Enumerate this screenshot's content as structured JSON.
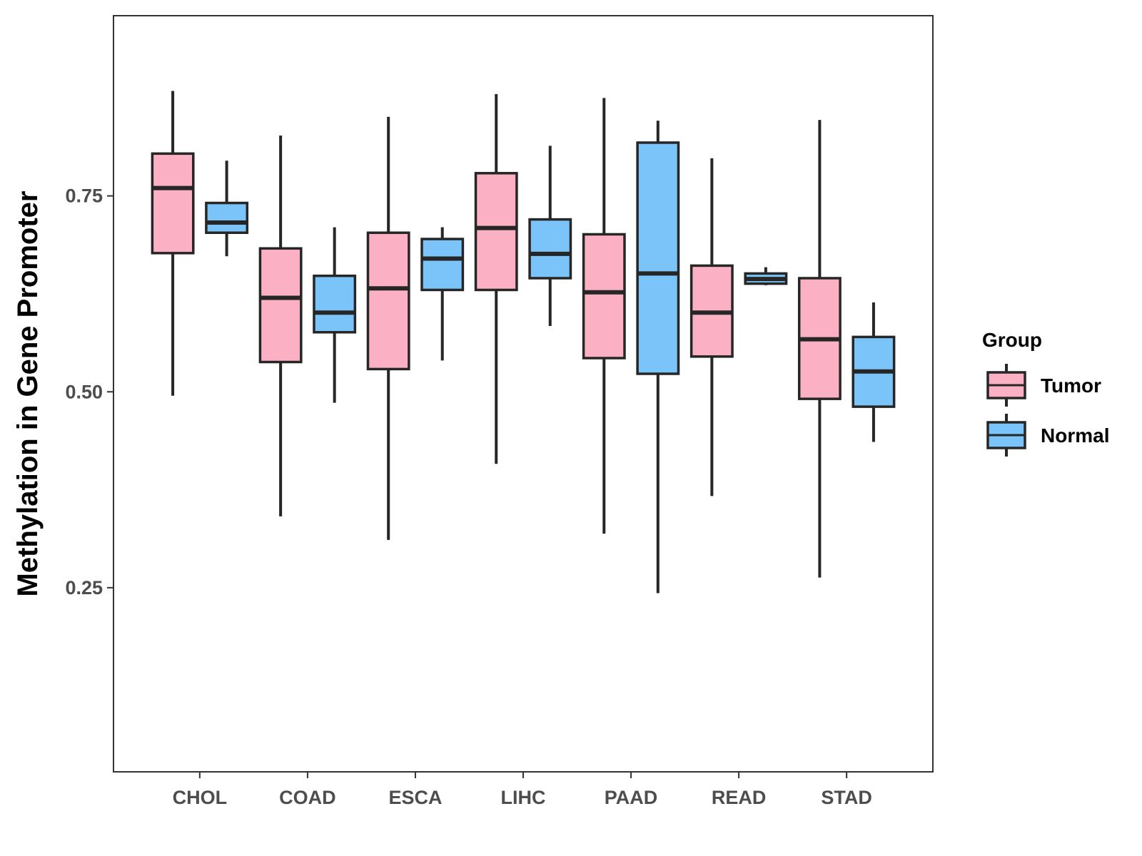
{
  "chart_data": {
    "type": "boxplot",
    "title": "",
    "xlabel": "",
    "ylabel": "Methylation in Gene Promoter",
    "ylim": [
      0.015,
      0.98
    ],
    "yticks": [
      0.25,
      0.5,
      0.75
    ],
    "ytick_labels": [
      "0.25",
      "0.50",
      "0.75"
    ],
    "categories": [
      "CHOL",
      "COAD",
      "ESCA",
      "LIHC",
      "PAAD",
      "READ",
      "STAD"
    ],
    "legend": {
      "title": "Group",
      "position": "right"
    },
    "series": [
      {
        "name": "Tumor",
        "color": "#FBB1C3",
        "boxes": [
          {
            "min": 0.495,
            "q1": 0.677,
            "median": 0.76,
            "q3": 0.804,
            "max": 0.884
          },
          {
            "min": 0.341,
            "q1": 0.538,
            "median": 0.62,
            "q3": 0.683,
            "max": 0.827
          },
          {
            "min": 0.311,
            "q1": 0.529,
            "median": 0.632,
            "q3": 0.703,
            "max": 0.851
          },
          {
            "min": 0.408,
            "q1": 0.63,
            "median": 0.709,
            "q3": 0.779,
            "max": 0.88
          },
          {
            "min": 0.319,
            "q1": 0.543,
            "median": 0.627,
            "q3": 0.701,
            "max": 0.875
          },
          {
            "min": 0.367,
            "q1": 0.545,
            "median": 0.601,
            "q3": 0.661,
            "max": 0.798
          },
          {
            "min": 0.263,
            "q1": 0.491,
            "median": 0.567,
            "q3": 0.645,
            "max": 0.847
          }
        ]
      },
      {
        "name": "Normal",
        "color": "#7AC4F9",
        "boxes": [
          {
            "min": 0.673,
            "q1": 0.703,
            "median": 0.716,
            "q3": 0.741,
            "max": 0.795
          },
          {
            "min": 0.486,
            "q1": 0.576,
            "median": 0.601,
            "q3": 0.648,
            "max": 0.71
          },
          {
            "min": 0.54,
            "q1": 0.63,
            "median": 0.67,
            "q3": 0.695,
            "max": 0.71
          },
          {
            "min": 0.584,
            "q1": 0.645,
            "median": 0.676,
            "q3": 0.72,
            "max": 0.814
          },
          {
            "min": 0.243,
            "q1": 0.523,
            "median": 0.651,
            "q3": 0.818,
            "max": 0.846
          },
          {
            "min": 0.636,
            "q1": 0.638,
            "median": 0.644,
            "q3": 0.651,
            "max": 0.659
          },
          {
            "min": 0.436,
            "q1": 0.481,
            "median": 0.526,
            "q3": 0.57,
            "max": 0.614
          }
        ]
      }
    ]
  }
}
